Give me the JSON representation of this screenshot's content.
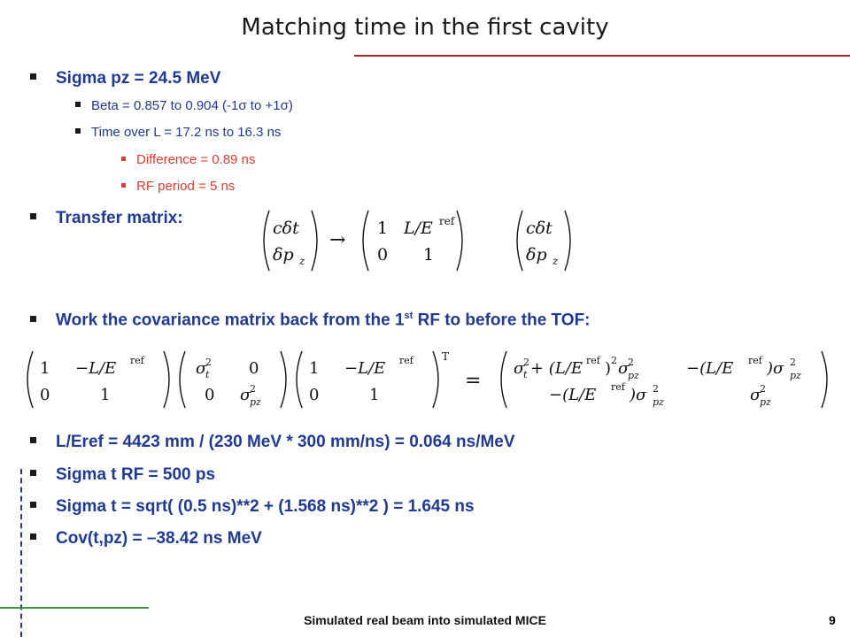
{
  "slide": {
    "title": "Matching time in the first cavity",
    "page_number": "9",
    "footer": "Simulated real beam into simulated MICE"
  },
  "bullets": {
    "sigma_pz": "Sigma pz = 24.5 MeV",
    "beta": "Beta = 0.857 to 0.904 (-1σ to +1σ)",
    "time_over_l": "Time over L = 17.2 ns to 16.3 ns",
    "difference": "Difference = 0.89 ns",
    "rf_period": "RF period = 5 ns",
    "transfer_matrix": "Transfer matrix:",
    "covariance_pre": "Work the covariance matrix back from the 1",
    "covariance_sup": "st",
    "covariance_post": " RF to before the TOF:",
    "l_eref": "L/Eref = 4423 mm / (230 MeV * 300 mm/ns) = 0.064 ns/MeV",
    "sigma_t_rf": "Sigma t RF = 500 ps",
    "sigma_t": "Sigma t = sqrt( (0.5 ns)**2 + (1.568 ns)**2 ) = 1.645 ns",
    "cov_t_pz": "Cov(t,pz) = –38.42 ns MeV"
  },
  "equations": {
    "transfer": {
      "lhs_top": "cδt",
      "lhs_bottom": "δp",
      "lhs_bottom_sub": "z",
      "arrow": "→",
      "m11": "1",
      "m12": "L/E",
      "m12_sup": "ref",
      "m21": "0",
      "m22": "1",
      "rhs_top": "cδt",
      "rhs_bottom": "δp",
      "rhs_bottom_sub": "z"
    },
    "covariance": {
      "a11": "1",
      "a12": "−L/E",
      "a12_sup": "ref",
      "a21": "0",
      "a22": "1",
      "s11": "σ",
      "s11_sub": "t",
      "s11_sup": "2",
      "s12": "0",
      "s21": "0",
      "s22": "σ",
      "s22_sub": "pz",
      "s22_sup": "2",
      "b11": "1",
      "b12": "−L/E",
      "b12_sup": "ref",
      "b21": "0",
      "b22": "1",
      "transpose": "T",
      "equals": "=",
      "r11_a": "σ",
      "r11_a_sub": "t",
      "r11_a_sup": "2",
      "r11_b": " + (L/E",
      "r11_b_sup": "ref",
      "r11_c": ")",
      "r11_c_sup": "2",
      "r11_d": "σ",
      "r11_d_sub": "pz",
      "r11_d_sup": "2",
      "r12_a": "−(L/E",
      "r12_a_sup": "ref",
      "r12_b": ")σ",
      "r12_b_sub": "pz",
      "r12_b_sup": "2",
      "r21_a": "−(L/E",
      "r21_a_sup": "ref",
      "r21_b": ")σ",
      "r21_b_sub": "pz",
      "r21_b_sup": "2",
      "r22": "σ",
      "r22_sub": "pz",
      "r22_sup": "2"
    }
  }
}
